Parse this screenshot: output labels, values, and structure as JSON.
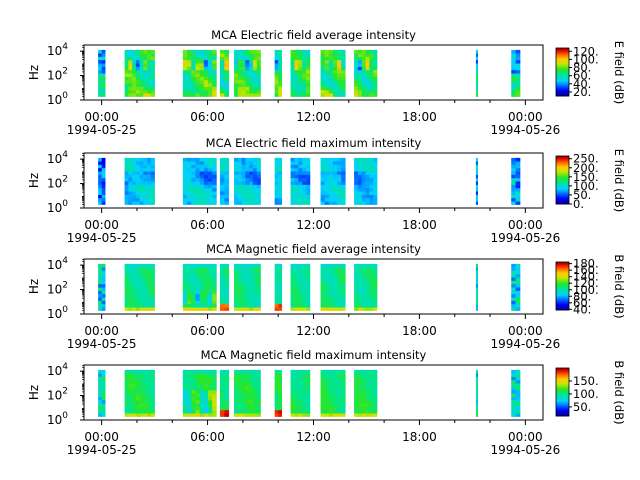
{
  "chart_data": [
    {
      "type": "heatmap",
      "title": "MCA  Electric field average intensity",
      "ylabel": "Hz",
      "colorbar_label": "E field (dB)",
      "colorbar_range": [
        10,
        128
      ],
      "colorbar_ticks": [
        "20.",
        "40.",
        "60.",
        "80.",
        "100.",
        "120."
      ],
      "ylim_log10": [
        0,
        4.5
      ],
      "y_ticks": [
        {
          "base": "10",
          "exp": "0"
        },
        {
          "base": "10",
          "exp": "2"
        },
        {
          "base": "10",
          "exp": "4"
        }
      ],
      "x_ticks": [
        {
          "time": "00:00",
          "date": "1994-05-25"
        },
        {
          "time": "06:00",
          "date": ""
        },
        {
          "time": "12:00",
          "date": ""
        },
        {
          "time": "18:00",
          "date": ""
        },
        {
          "time": "00:00",
          "date": "1994-05-26"
        }
      ],
      "mode": "avgE",
      "data_segments_hours": [
        [
          -0.2,
          0.2
        ],
        [
          1.3,
          3.0
        ],
        [
          4.6,
          6.5
        ],
        [
          6.7,
          7.2
        ],
        [
          7.5,
          9.0
        ],
        [
          9.8,
          10.2
        ],
        [
          10.7,
          11.8
        ],
        [
          12.4,
          13.8
        ],
        [
          14.3,
          15.6
        ],
        [
          21.2,
          21.3
        ],
        [
          23.2,
          23.7
        ]
      ]
    },
    {
      "type": "heatmap",
      "title": "MCA  Electric field maximum intensity",
      "ylabel": "Hz",
      "colorbar_label": "E field (dB)",
      "colorbar_range": [
        0,
        265
      ],
      "colorbar_ticks": [
        "0.",
        "50.",
        "100.",
        "150.",
        "200.",
        "250."
      ],
      "ylim_log10": [
        0,
        4.5
      ],
      "y_ticks": [
        {
          "base": "10",
          "exp": "0"
        },
        {
          "base": "10",
          "exp": "2"
        },
        {
          "base": "10",
          "exp": "4"
        }
      ],
      "x_ticks": [
        {
          "time": "00:00",
          "date": "1994-05-25"
        },
        {
          "time": "06:00",
          "date": ""
        },
        {
          "time": "12:00",
          "date": ""
        },
        {
          "time": "18:00",
          "date": ""
        },
        {
          "time": "00:00",
          "date": "1994-05-26"
        }
      ],
      "mode": "maxE",
      "data_segments_hours": [
        [
          -0.2,
          0.2
        ],
        [
          1.3,
          3.0
        ],
        [
          4.6,
          6.5
        ],
        [
          6.7,
          7.2
        ],
        [
          7.5,
          9.0
        ],
        [
          9.8,
          10.2
        ],
        [
          10.7,
          11.8
        ],
        [
          12.4,
          13.8
        ],
        [
          14.3,
          15.6
        ],
        [
          21.2,
          21.3
        ],
        [
          23.2,
          23.7
        ]
      ]
    },
    {
      "type": "heatmap",
      "title": "MCA  Magnetic field average intensity",
      "ylabel": "Hz",
      "colorbar_label": "B field (dB)",
      "colorbar_range": [
        38,
        185
      ],
      "colorbar_ticks": [
        "40.",
        "60.",
        "80.",
        "100.",
        "120.",
        "140.",
        "160.",
        "180."
      ],
      "ylim_log10": [
        0,
        4.5
      ],
      "y_ticks": [
        {
          "base": "10",
          "exp": "0"
        },
        {
          "base": "10",
          "exp": "2"
        },
        {
          "base": "10",
          "exp": "4"
        }
      ],
      "x_ticks": [
        {
          "time": "00:00",
          "date": "1994-05-25"
        },
        {
          "time": "06:00",
          "date": ""
        },
        {
          "time": "12:00",
          "date": ""
        },
        {
          "time": "18:00",
          "date": ""
        },
        {
          "time": "00:00",
          "date": "1994-05-26"
        }
      ],
      "mode": "avgB",
      "data_segments_hours": [
        [
          -0.2,
          0.2
        ],
        [
          1.3,
          3.0
        ],
        [
          4.6,
          6.5
        ],
        [
          6.7,
          7.2
        ],
        [
          7.5,
          9.0
        ],
        [
          9.8,
          10.2
        ],
        [
          10.7,
          11.8
        ],
        [
          12.4,
          13.8
        ],
        [
          14.3,
          15.6
        ],
        [
          21.2,
          21.3
        ],
        [
          23.2,
          23.7
        ]
      ]
    },
    {
      "type": "heatmap",
      "title": "MCA  Magnetic field maximum intensity",
      "ylabel": "Hz",
      "colorbar_label": "B field (dB)",
      "colorbar_range": [
        15,
        200
      ],
      "colorbar_ticks": [
        "50.",
        "100.",
        "150."
      ],
      "ylim_log10": [
        0,
        4.5
      ],
      "y_ticks": [
        {
          "base": "10",
          "exp": "0"
        },
        {
          "base": "10",
          "exp": "2"
        },
        {
          "base": "10",
          "exp": "4"
        }
      ],
      "x_ticks": [
        {
          "time": "00:00",
          "date": "1994-05-25"
        },
        {
          "time": "06:00",
          "date": ""
        },
        {
          "time": "12:00",
          "date": ""
        },
        {
          "time": "18:00",
          "date": ""
        },
        {
          "time": "00:00",
          "date": "1994-05-26"
        }
      ],
      "mode": "maxB",
      "data_segments_hours": [
        [
          -0.2,
          0.2
        ],
        [
          1.3,
          3.0
        ],
        [
          4.6,
          6.5
        ],
        [
          6.7,
          7.2
        ],
        [
          7.5,
          9.0
        ],
        [
          9.8,
          10.2
        ],
        [
          10.7,
          11.8
        ],
        [
          12.4,
          13.8
        ],
        [
          14.3,
          15.6
        ],
        [
          21.2,
          21.3
        ],
        [
          23.2,
          23.7
        ]
      ]
    }
  ]
}
